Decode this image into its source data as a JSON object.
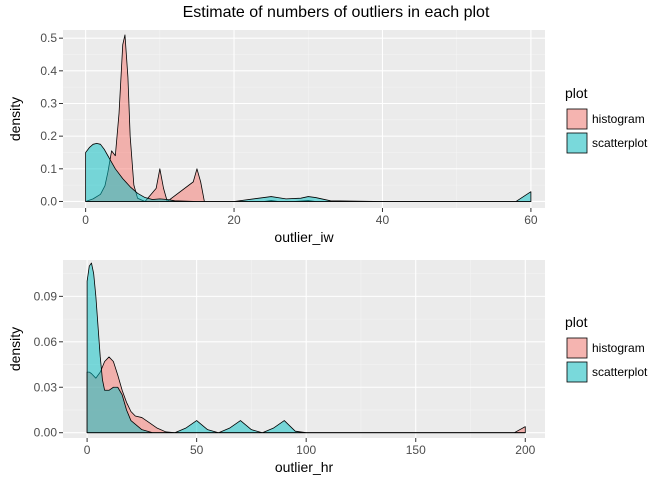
{
  "title": "Estimate of numbers of outliers in each plot",
  "colors": {
    "histogram": "#F8766D",
    "scatterplot": "#00BFC4",
    "panel": "#EBEBEB"
  },
  "chart_data": [
    {
      "type": "area",
      "xlabel": "outlier_iw",
      "ylabel": "density",
      "xlim": [
        -3.05,
        61.9
      ],
      "ylim": [
        -0.02,
        0.525
      ],
      "xticks": [
        0,
        20,
        40,
        60
      ],
      "xtick_labels": [
        "0",
        "20",
        "40",
        "60"
      ],
      "yticks": [
        0.0,
        0.1,
        0.2,
        0.3,
        0.4,
        0.5
      ],
      "ytick_labels": [
        "0.0",
        "0.1",
        "0.2",
        "0.3",
        "0.4",
        "0.5"
      ],
      "legend": {
        "title": "plot",
        "position": "right",
        "entries": [
          "histogram",
          "scatterplot"
        ]
      },
      "series": [
        {
          "name": "histogram",
          "x": [
            0,
            1,
            2,
            2.6,
            3,
            3.5,
            4,
            4.5,
            5,
            5.3,
            5.7,
            6,
            6.5,
            7,
            8,
            9.5,
            10,
            10.5,
            11,
            14.5,
            15,
            15.5,
            16,
            24,
            25,
            26,
            28,
            30,
            31,
            32,
            35,
            50,
            59.5,
            60
          ],
          "y": [
            0.0,
            0.008,
            0.022,
            0.048,
            0.09,
            0.155,
            0.14,
            0.27,
            0.48,
            0.51,
            0.38,
            0.2,
            0.05,
            0.01,
            0.0,
            0.04,
            0.1,
            0.04,
            0.0,
            0.06,
            0.1,
            0.06,
            0.0,
            0.0,
            0.003,
            0.0,
            0.0,
            0.003,
            0.0,
            0.0,
            0.0,
            0.0,
            0.0,
            0.0
          ]
        },
        {
          "name": "scatterplot",
          "x": [
            0,
            0.5,
            1,
            1.5,
            2,
            2.5,
            3,
            3.5,
            4,
            5,
            6,
            7,
            8,
            9,
            10,
            11,
            12,
            15,
            20,
            24,
            25,
            27,
            29,
            30,
            31,
            33,
            40,
            50,
            58,
            59,
            60
          ],
          "y": [
            0.15,
            0.165,
            0.175,
            0.178,
            0.175,
            0.16,
            0.14,
            0.12,
            0.1,
            0.07,
            0.045,
            0.025,
            0.012,
            0.006,
            0.008,
            0.006,
            0.002,
            0.0,
            0.0,
            0.012,
            0.015,
            0.008,
            0.01,
            0.015,
            0.012,
            0.002,
            0.0,
            0.0,
            0.0,
            0.015,
            0.03
          ]
        }
      ]
    },
    {
      "type": "area",
      "xlabel": "outlier_hr",
      "ylabel": "density",
      "xlim": [
        -11,
        209
      ],
      "ylim": [
        -0.0035,
        0.114
      ],
      "xticks": [
        0,
        50,
        100,
        150,
        200
      ],
      "xtick_labels": [
        "0",
        "50",
        "100",
        "150",
        "200"
      ],
      "yticks": [
        0.0,
        0.03,
        0.06,
        0.09
      ],
      "ytick_labels": [
        "0.00",
        "0.03",
        "0.06",
        "0.09"
      ],
      "legend": {
        "title": "plot",
        "position": "right",
        "entries": [
          "histogram",
          "scatterplot"
        ]
      },
      "series": [
        {
          "name": "histogram",
          "x": [
            0,
            1,
            2,
            4,
            6,
            8,
            10,
            12,
            14,
            16,
            18,
            20,
            22,
            25,
            28,
            32,
            36,
            40,
            60,
            100,
            150,
            195,
            200
          ],
          "y": [
            0.04,
            0.04,
            0.039,
            0.036,
            0.04,
            0.047,
            0.05,
            0.047,
            0.038,
            0.028,
            0.02,
            0.014,
            0.011,
            0.01,
            0.007,
            0.003,
            0.0005,
            0.0,
            0.0,
            0.0,
            0.0,
            0.0,
            0.004
          ]
        },
        {
          "name": "scatterplot",
          "x": [
            0,
            1,
            2,
            3,
            4,
            5,
            6,
            7,
            8,
            10,
            12,
            14,
            16,
            18,
            20,
            25,
            30,
            40,
            45,
            50,
            55,
            60,
            65,
            70,
            75,
            80,
            85,
            90,
            95,
            100,
            150,
            195,
            200
          ],
          "y": [
            0.1,
            0.11,
            0.112,
            0.105,
            0.09,
            0.07,
            0.05,
            0.035,
            0.028,
            0.028,
            0.03,
            0.03,
            0.025,
            0.015,
            0.008,
            0.002,
            0.0,
            0.0,
            0.003,
            0.008,
            0.002,
            0.0,
            0.003,
            0.008,
            0.002,
            0.0,
            0.003,
            0.008,
            0.001,
            0.0,
            0.0,
            0.0,
            0.0
          ]
        }
      ]
    }
  ]
}
